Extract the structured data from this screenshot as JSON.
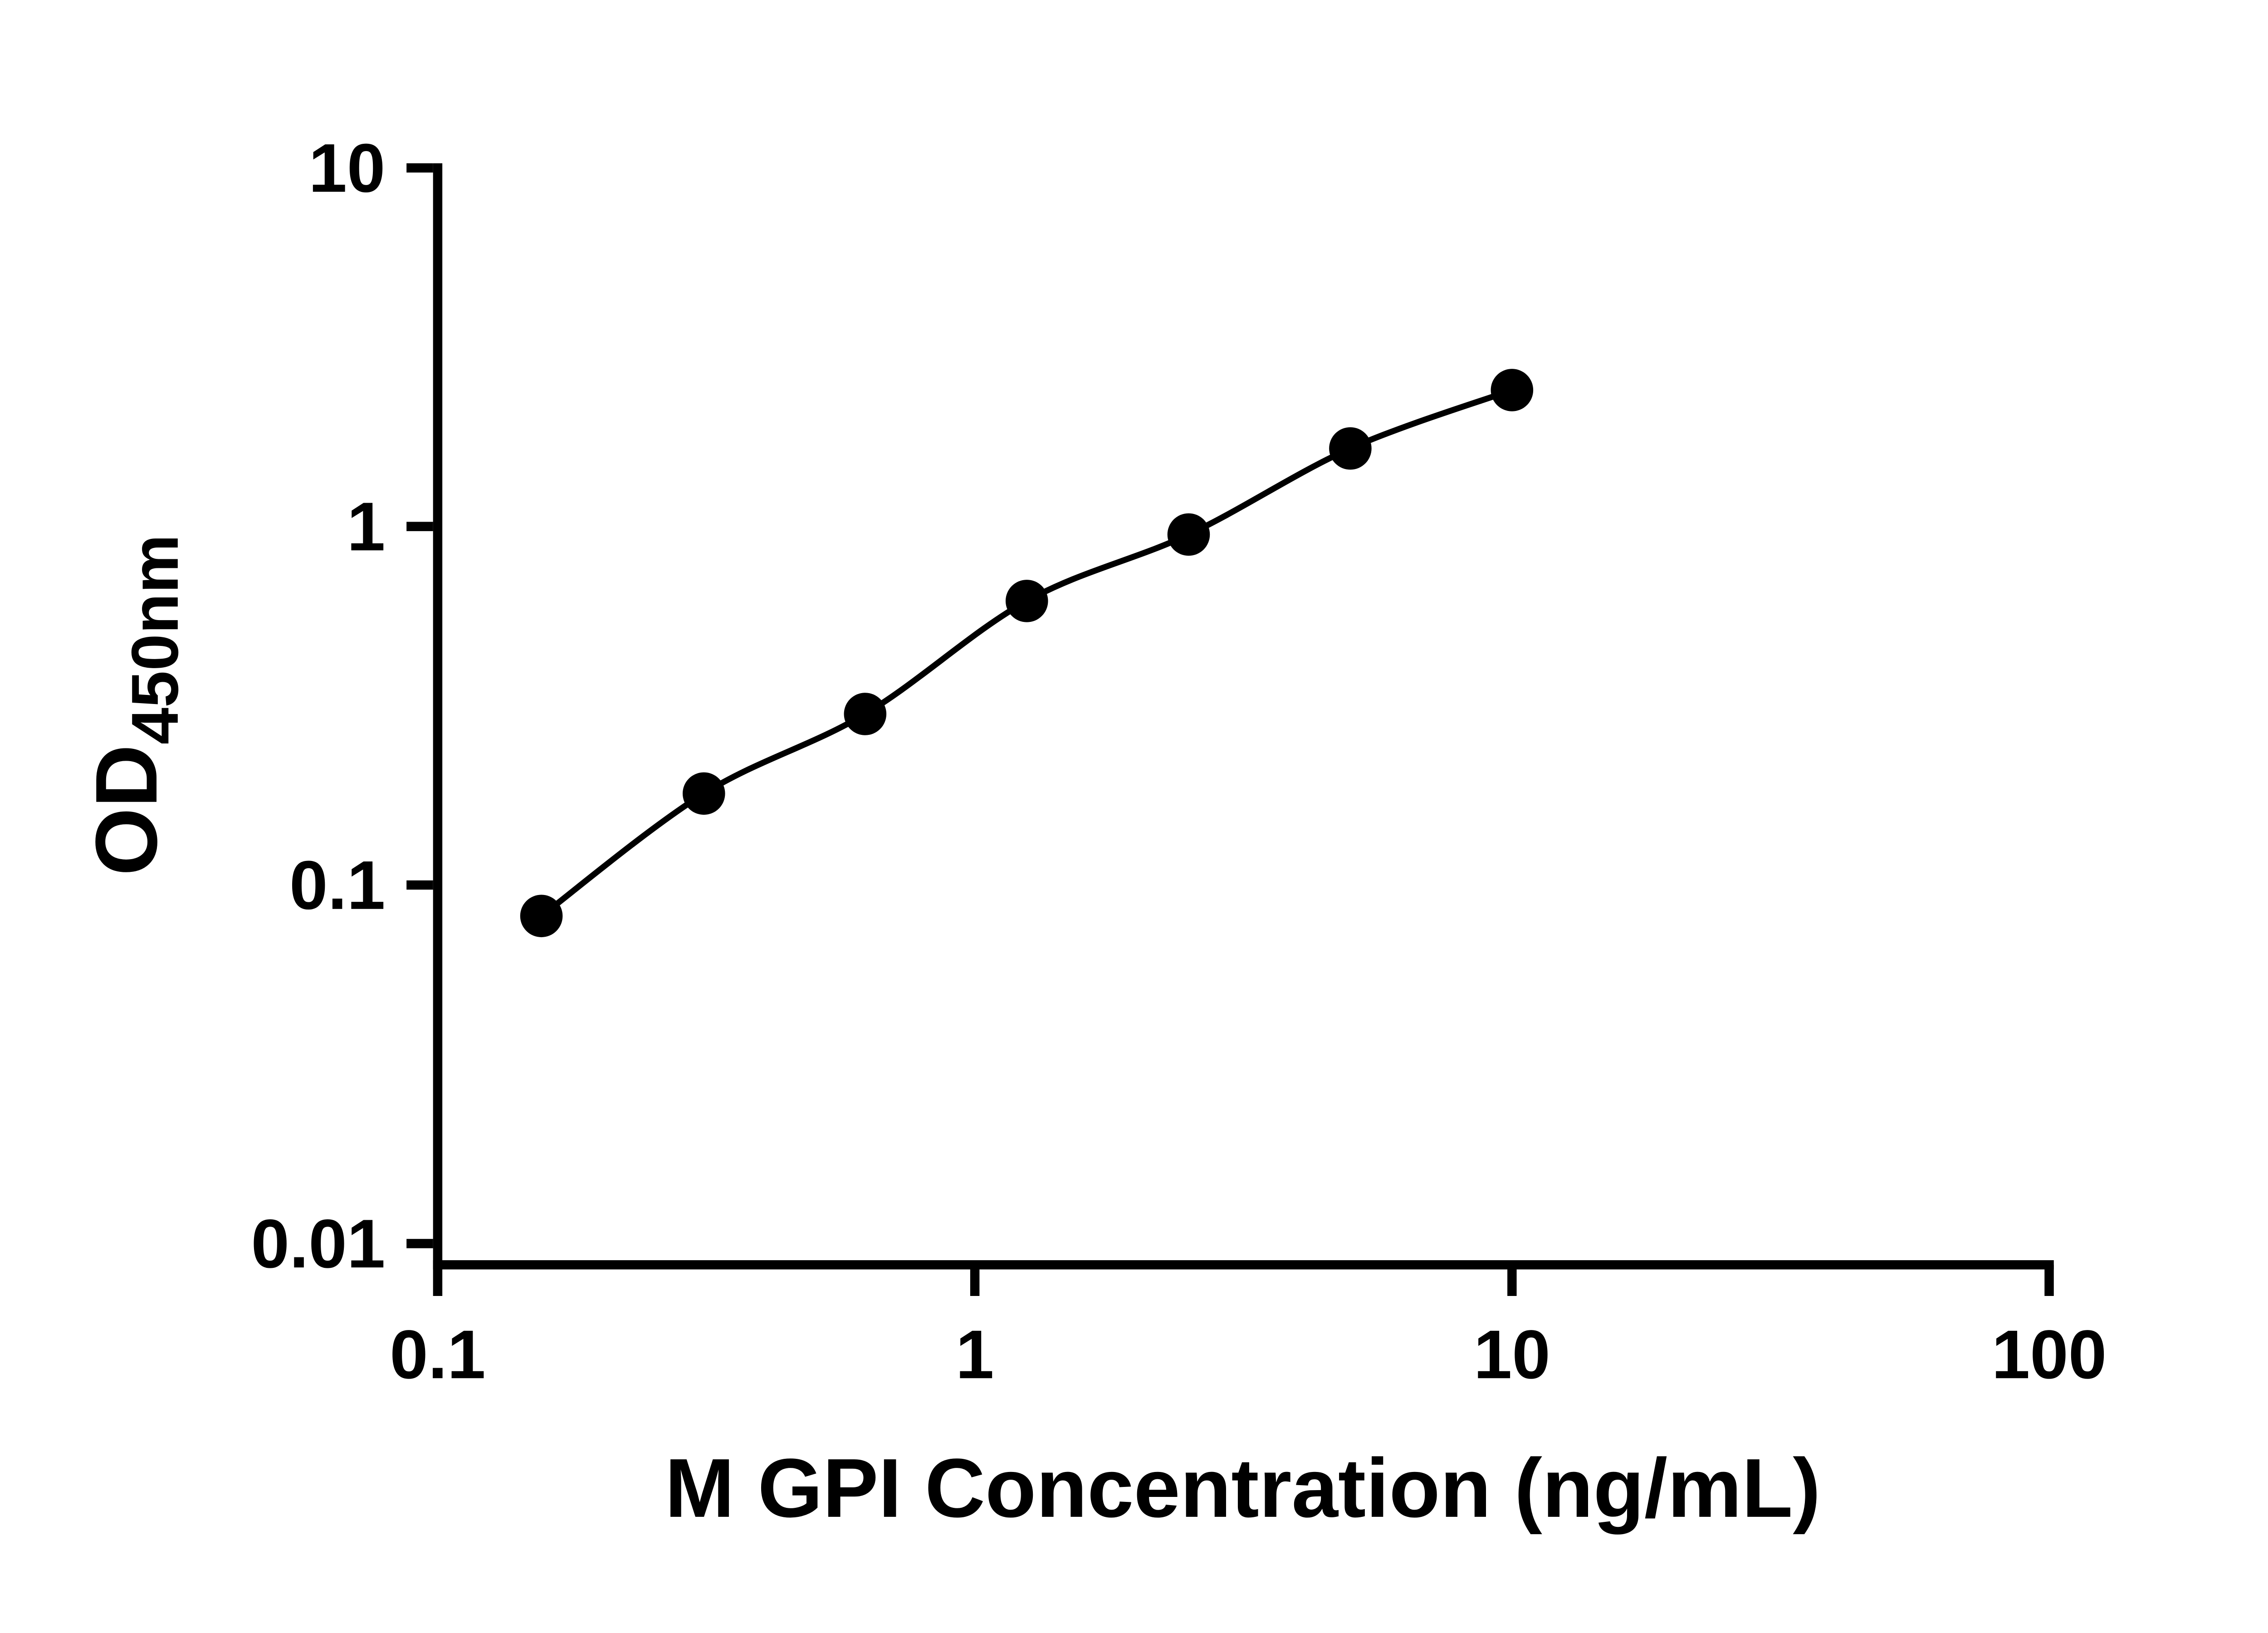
{
  "figure": {
    "background_color": "#ffffff"
  },
  "chart_data": {
    "type": "scatter",
    "subtype": "line-with-markers",
    "title": "",
    "xlabel": "M GPI Concentration (ng/mL)",
    "ylabel_main": "OD",
    "ylabel_sub": "450nm",
    "x_scale": "log10",
    "y_scale": "log10",
    "xlim": [
      0.1,
      100
    ],
    "ylim": [
      0.01,
      10
    ],
    "grid": false,
    "legend": null,
    "x_ticks": [
      {
        "value": 0.1,
        "label": "0.1"
      },
      {
        "value": 1,
        "label": "1"
      },
      {
        "value": 10,
        "label": "10"
      },
      {
        "value": 100,
        "label": "100"
      }
    ],
    "y_ticks": [
      {
        "value": 0.01,
        "label": "0.01"
      },
      {
        "value": 0.1,
        "label": "0.1"
      },
      {
        "value": 1,
        "label": "1"
      },
      {
        "value": 10,
        "label": "10"
      }
    ],
    "points": [
      {
        "x": 0.156,
        "y": 0.082
      },
      {
        "x": 0.313,
        "y": 0.18
      },
      {
        "x": 0.625,
        "y": 0.3
      },
      {
        "x": 1.25,
        "y": 0.62
      },
      {
        "x": 2.5,
        "y": 0.95
      },
      {
        "x": 5,
        "y": 1.65
      },
      {
        "x": 10,
        "y": 2.4
      }
    ],
    "style": {
      "axis_color": "#000000",
      "line_color": "#000000",
      "point_color": "#000000",
      "marker_shape": "circle"
    }
  }
}
